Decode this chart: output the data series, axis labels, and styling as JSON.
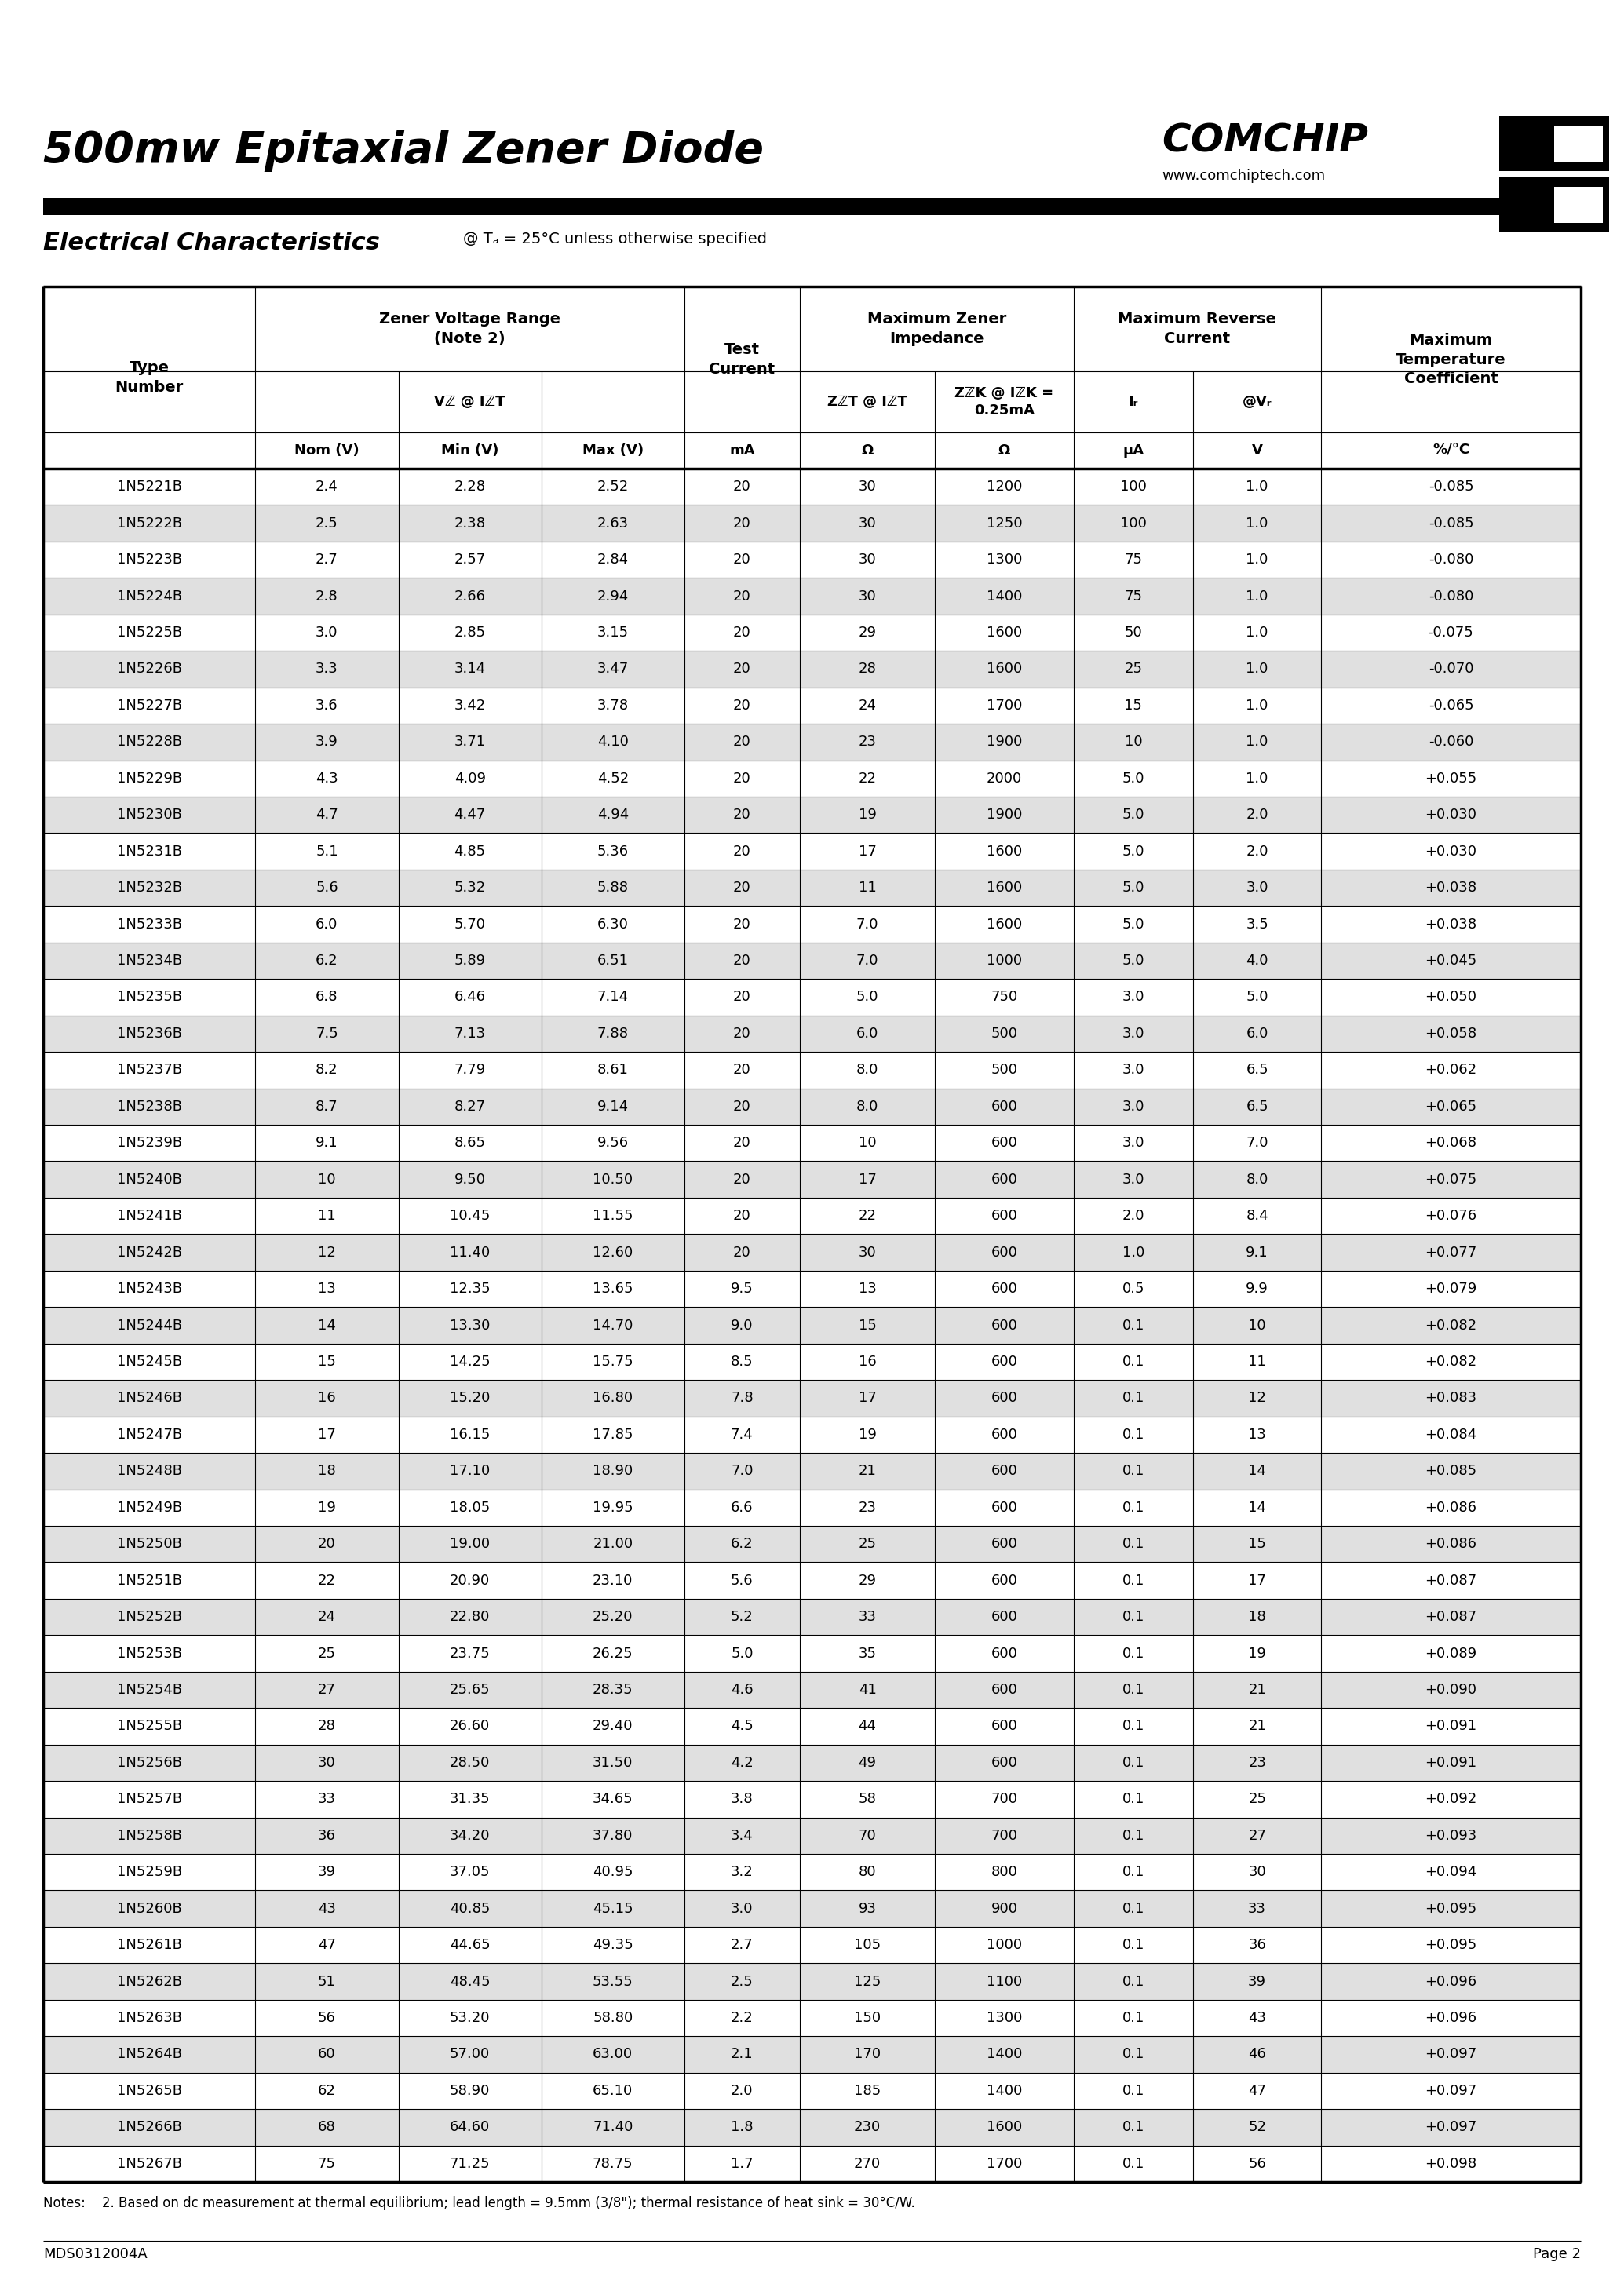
{
  "title": "500mw Epitaxial Zener Diode",
  "brand": "COMCHIP",
  "website": "www.comchiptech.com",
  "section_title": "Electrical Characteristics",
  "section_subtitle": "@ Tₐ = 25°C unless otherwise specified",
  "footer_left": "MDS0312004A",
  "footer_right": "Page 2",
  "note": "Notes:    2. Based on dc measurement at thermal equilibrium; lead length = 9.5mm (3/8\"); thermal resistance of heat sink = 30°C/W.",
  "rows": [
    [
      "1N5221B",
      "2.4",
      "2.28",
      "2.52",
      "20",
      "30",
      "1200",
      "100",
      "1.0",
      "-0.085"
    ],
    [
      "1N5222B",
      "2.5",
      "2.38",
      "2.63",
      "20",
      "30",
      "1250",
      "100",
      "1.0",
      "-0.085"
    ],
    [
      "1N5223B",
      "2.7",
      "2.57",
      "2.84",
      "20",
      "30",
      "1300",
      "75",
      "1.0",
      "-0.080"
    ],
    [
      "1N5224B",
      "2.8",
      "2.66",
      "2.94",
      "20",
      "30",
      "1400",
      "75",
      "1.0",
      "-0.080"
    ],
    [
      "1N5225B",
      "3.0",
      "2.85",
      "3.15",
      "20",
      "29",
      "1600",
      "50",
      "1.0",
      "-0.075"
    ],
    [
      "1N5226B",
      "3.3",
      "3.14",
      "3.47",
      "20",
      "28",
      "1600",
      "25",
      "1.0",
      "-0.070"
    ],
    [
      "1N5227B",
      "3.6",
      "3.42",
      "3.78",
      "20",
      "24",
      "1700",
      "15",
      "1.0",
      "-0.065"
    ],
    [
      "1N5228B",
      "3.9",
      "3.71",
      "4.10",
      "20",
      "23",
      "1900",
      "10",
      "1.0",
      "-0.060"
    ],
    [
      "1N5229B",
      "4.3",
      "4.09",
      "4.52",
      "20",
      "22",
      "2000",
      "5.0",
      "1.0",
      "+0.055"
    ],
    [
      "1N5230B",
      "4.7",
      "4.47",
      "4.94",
      "20",
      "19",
      "1900",
      "5.0",
      "2.0",
      "+0.030"
    ],
    [
      "1N5231B",
      "5.1",
      "4.85",
      "5.36",
      "20",
      "17",
      "1600",
      "5.0",
      "2.0",
      "+0.030"
    ],
    [
      "1N5232B",
      "5.6",
      "5.32",
      "5.88",
      "20",
      "11",
      "1600",
      "5.0",
      "3.0",
      "+0.038"
    ],
    [
      "1N5233B",
      "6.0",
      "5.70",
      "6.30",
      "20",
      "7.0",
      "1600",
      "5.0",
      "3.5",
      "+0.038"
    ],
    [
      "1N5234B",
      "6.2",
      "5.89",
      "6.51",
      "20",
      "7.0",
      "1000",
      "5.0",
      "4.0",
      "+0.045"
    ],
    [
      "1N5235B",
      "6.8",
      "6.46",
      "7.14",
      "20",
      "5.0",
      "750",
      "3.0",
      "5.0",
      "+0.050"
    ],
    [
      "1N5236B",
      "7.5",
      "7.13",
      "7.88",
      "20",
      "6.0",
      "500",
      "3.0",
      "6.0",
      "+0.058"
    ],
    [
      "1N5237B",
      "8.2",
      "7.79",
      "8.61",
      "20",
      "8.0",
      "500",
      "3.0",
      "6.5",
      "+0.062"
    ],
    [
      "1N5238B",
      "8.7",
      "8.27",
      "9.14",
      "20",
      "8.0",
      "600",
      "3.0",
      "6.5",
      "+0.065"
    ],
    [
      "1N5239B",
      "9.1",
      "8.65",
      "9.56",
      "20",
      "10",
      "600",
      "3.0",
      "7.0",
      "+0.068"
    ],
    [
      "1N5240B",
      "10",
      "9.50",
      "10.50",
      "20",
      "17",
      "600",
      "3.0",
      "8.0",
      "+0.075"
    ],
    [
      "1N5241B",
      "11",
      "10.45",
      "11.55",
      "20",
      "22",
      "600",
      "2.0",
      "8.4",
      "+0.076"
    ],
    [
      "1N5242B",
      "12",
      "11.40",
      "12.60",
      "20",
      "30",
      "600",
      "1.0",
      "9.1",
      "+0.077"
    ],
    [
      "1N5243B",
      "13",
      "12.35",
      "13.65",
      "9.5",
      "13",
      "600",
      "0.5",
      "9.9",
      "+0.079"
    ],
    [
      "1N5244B",
      "14",
      "13.30",
      "14.70",
      "9.0",
      "15",
      "600",
      "0.1",
      "10",
      "+0.082"
    ],
    [
      "1N5245B",
      "15",
      "14.25",
      "15.75",
      "8.5",
      "16",
      "600",
      "0.1",
      "11",
      "+0.082"
    ],
    [
      "1N5246B",
      "16",
      "15.20",
      "16.80",
      "7.8",
      "17",
      "600",
      "0.1",
      "12",
      "+0.083"
    ],
    [
      "1N5247B",
      "17",
      "16.15",
      "17.85",
      "7.4",
      "19",
      "600",
      "0.1",
      "13",
      "+0.084"
    ],
    [
      "1N5248B",
      "18",
      "17.10",
      "18.90",
      "7.0",
      "21",
      "600",
      "0.1",
      "14",
      "+0.085"
    ],
    [
      "1N5249B",
      "19",
      "18.05",
      "19.95",
      "6.6",
      "23",
      "600",
      "0.1",
      "14",
      "+0.086"
    ],
    [
      "1N5250B",
      "20",
      "19.00",
      "21.00",
      "6.2",
      "25",
      "600",
      "0.1",
      "15",
      "+0.086"
    ],
    [
      "1N5251B",
      "22",
      "20.90",
      "23.10",
      "5.6",
      "29",
      "600",
      "0.1",
      "17",
      "+0.087"
    ],
    [
      "1N5252B",
      "24",
      "22.80",
      "25.20",
      "5.2",
      "33",
      "600",
      "0.1",
      "18",
      "+0.087"
    ],
    [
      "1N5253B",
      "25",
      "23.75",
      "26.25",
      "5.0",
      "35",
      "600",
      "0.1",
      "19",
      "+0.089"
    ],
    [
      "1N5254B",
      "27",
      "25.65",
      "28.35",
      "4.6",
      "41",
      "600",
      "0.1",
      "21",
      "+0.090"
    ],
    [
      "1N5255B",
      "28",
      "26.60",
      "29.40",
      "4.5",
      "44",
      "600",
      "0.1",
      "21",
      "+0.091"
    ],
    [
      "1N5256B",
      "30",
      "28.50",
      "31.50",
      "4.2",
      "49",
      "600",
      "0.1",
      "23",
      "+0.091"
    ],
    [
      "1N5257B",
      "33",
      "31.35",
      "34.65",
      "3.8",
      "58",
      "700",
      "0.1",
      "25",
      "+0.092"
    ],
    [
      "1N5258B",
      "36",
      "34.20",
      "37.80",
      "3.4",
      "70",
      "700",
      "0.1",
      "27",
      "+0.093"
    ],
    [
      "1N5259B",
      "39",
      "37.05",
      "40.95",
      "3.2",
      "80",
      "800",
      "0.1",
      "30",
      "+0.094"
    ],
    [
      "1N5260B",
      "43",
      "40.85",
      "45.15",
      "3.0",
      "93",
      "900",
      "0.1",
      "33",
      "+0.095"
    ],
    [
      "1N5261B",
      "47",
      "44.65",
      "49.35",
      "2.7",
      "105",
      "1000",
      "0.1",
      "36",
      "+0.095"
    ],
    [
      "1N5262B",
      "51",
      "48.45",
      "53.55",
      "2.5",
      "125",
      "1100",
      "0.1",
      "39",
      "+0.096"
    ],
    [
      "1N5263B",
      "56",
      "53.20",
      "58.80",
      "2.2",
      "150",
      "1300",
      "0.1",
      "43",
      "+0.096"
    ],
    [
      "1N5264B",
      "60",
      "57.00",
      "63.00",
      "2.1",
      "170",
      "1400",
      "0.1",
      "46",
      "+0.097"
    ],
    [
      "1N5265B",
      "62",
      "58.90",
      "65.10",
      "2.0",
      "185",
      "1400",
      "0.1",
      "47",
      "+0.097"
    ],
    [
      "1N5266B",
      "68",
      "64.60",
      "71.40",
      "1.8",
      "230",
      "1600",
      "0.1",
      "52",
      "+0.097"
    ],
    [
      "1N5267B",
      "75",
      "71.25",
      "78.75",
      "1.7",
      "270",
      "1700",
      "0.1",
      "56",
      "+0.098"
    ]
  ]
}
